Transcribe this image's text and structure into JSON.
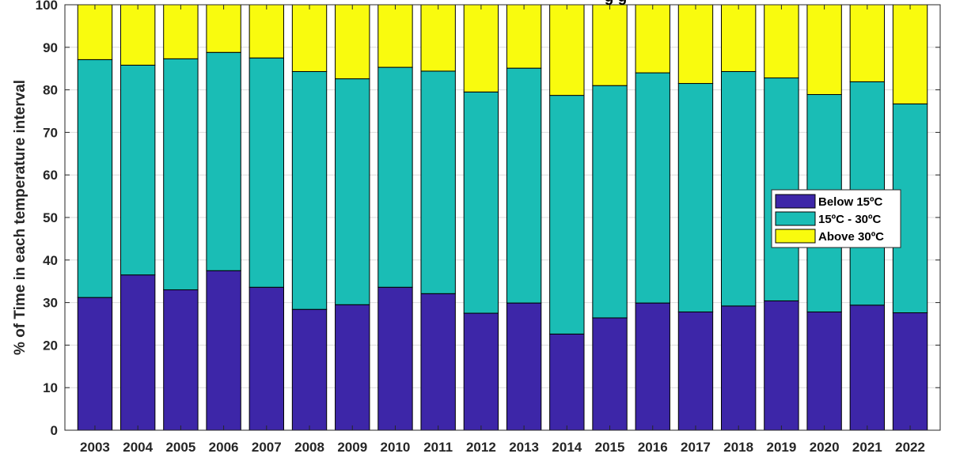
{
  "chart_data": {
    "type": "bar",
    "stacked": true,
    "title_fragment": "g g",
    "ylabel": "% of Time in each temperature interval",
    "xlabel": "",
    "ylim": [
      0,
      100
    ],
    "yticks": [
      0,
      10,
      20,
      30,
      40,
      50,
      60,
      70,
      80,
      90,
      100
    ],
    "grid": "y-major",
    "legend_position": "center-right",
    "categories": [
      "2003",
      "2004",
      "2005",
      "2006",
      "2007",
      "2008",
      "2009",
      "2010",
      "2011",
      "2012",
      "2013",
      "2014",
      "2015",
      "2016",
      "2017",
      "2018",
      "2019",
      "2020",
      "2021",
      "2022"
    ],
    "series": [
      {
        "name": "Below 15ºC",
        "color": "#3d26a8",
        "values": [
          31.2,
          36.5,
          33.0,
          37.5,
          33.6,
          28.4,
          29.5,
          33.6,
          32.1,
          27.5,
          29.9,
          22.6,
          26.4,
          29.9,
          27.8,
          29.2,
          30.4,
          27.8,
          29.4,
          27.6
        ]
      },
      {
        "name": "15ºC - 30ºC",
        "color": "#1abdb5",
        "values": [
          55.9,
          49.3,
          54.3,
          51.3,
          53.9,
          55.9,
          53.1,
          51.7,
          52.3,
          52.0,
          55.2,
          56.1,
          54.6,
          54.1,
          53.7,
          55.1,
          52.4,
          51.1,
          52.5,
          49.1
        ]
      },
      {
        "name": "Above 30ºC",
        "color": "#f9fb0e",
        "values": [
          12.9,
          14.2,
          12.7,
          11.2,
          12.5,
          15.7,
          17.4,
          14.7,
          15.6,
          20.5,
          14.9,
          21.3,
          19.0,
          16.0,
          18.5,
          15.7,
          17.2,
          21.1,
          18.1,
          23.3
        ]
      }
    ]
  }
}
